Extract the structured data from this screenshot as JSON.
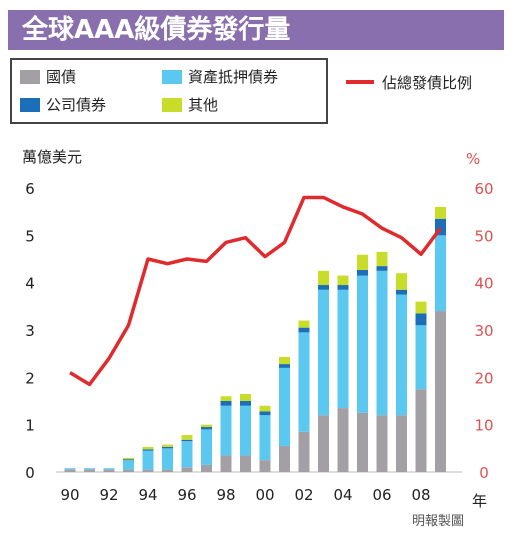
{
  "title": "全球AAA級債券發行量",
  "legend": {
    "govt": "國債",
    "abs": "資產抵押債券",
    "corp": "公司債券",
    "other": "其他",
    "line": "佔總發債比例"
  },
  "axes": {
    "left_unit": "萬億美元",
    "right_unit": "%",
    "x_unit": "年"
  },
  "credit": "明報製圖",
  "colors": {
    "govt": "#a3a0a5",
    "abs": "#5bc8f0",
    "corp": "#1b6fb8",
    "other": "#c8dc2a",
    "line": "#e02a2e",
    "title_bg": "#8a6fae",
    "right_axis": "#e05050"
  },
  "chart_data": {
    "type": "bar",
    "stacked": true,
    "x": [
      1990,
      1991,
      1992,
      1993,
      1994,
      1995,
      1996,
      1997,
      1998,
      1999,
      2000,
      2001,
      2002,
      2003,
      2004,
      2005,
      2006,
      2007,
      2008,
      2009
    ],
    "x_tick_labels": [
      "90",
      "92",
      "94",
      "96",
      "98",
      "00",
      "02",
      "04",
      "06",
      "08"
    ],
    "ylim_left": [
      0,
      6
    ],
    "y_ticks_left": [
      "0",
      "1",
      "2",
      "3",
      "4",
      "5",
      "6"
    ],
    "ylim_right": [
      0,
      60
    ],
    "y_ticks_right": [
      "0",
      "10",
      "20",
      "30",
      "40",
      "50",
      "60"
    ],
    "series": [
      {
        "name": "國債",
        "values": [
          0.05,
          0.05,
          0.05,
          0.05,
          0.05,
          0.05,
          0.1,
          0.15,
          0.35,
          0.35,
          0.25,
          0.55,
          0.85,
          1.2,
          1.35,
          1.25,
          1.2,
          1.2,
          1.75,
          3.4
        ]
      },
      {
        "name": "資產抵押債券",
        "values": [
          0.03,
          0.03,
          0.03,
          0.2,
          0.4,
          0.45,
          0.55,
          0.75,
          1.05,
          1.05,
          0.95,
          1.65,
          2.1,
          2.65,
          2.5,
          2.9,
          3.05,
          2.55,
          1.35,
          1.6
        ]
      },
      {
        "name": "公司債券",
        "values": [
          0.0,
          0.0,
          0.0,
          0.02,
          0.03,
          0.03,
          0.03,
          0.05,
          0.1,
          0.1,
          0.08,
          0.08,
          0.1,
          0.1,
          0.1,
          0.12,
          0.1,
          0.1,
          0.25,
          0.35
        ]
      },
      {
        "name": "其他",
        "values": [
          0.0,
          0.0,
          0.0,
          0.03,
          0.05,
          0.05,
          0.1,
          0.05,
          0.1,
          0.15,
          0.12,
          0.15,
          0.15,
          0.3,
          0.2,
          0.32,
          0.3,
          0.35,
          0.25,
          0.25
        ]
      }
    ],
    "line": {
      "name": "佔總發債比例",
      "axis": "right",
      "values": [
        21,
        18.5,
        24,
        31,
        45,
        44,
        45,
        44.5,
        48.5,
        49.5,
        45.5,
        48.5,
        58,
        58,
        56,
        54.5,
        51.5,
        49.5,
        46,
        51.5
      ]
    }
  }
}
